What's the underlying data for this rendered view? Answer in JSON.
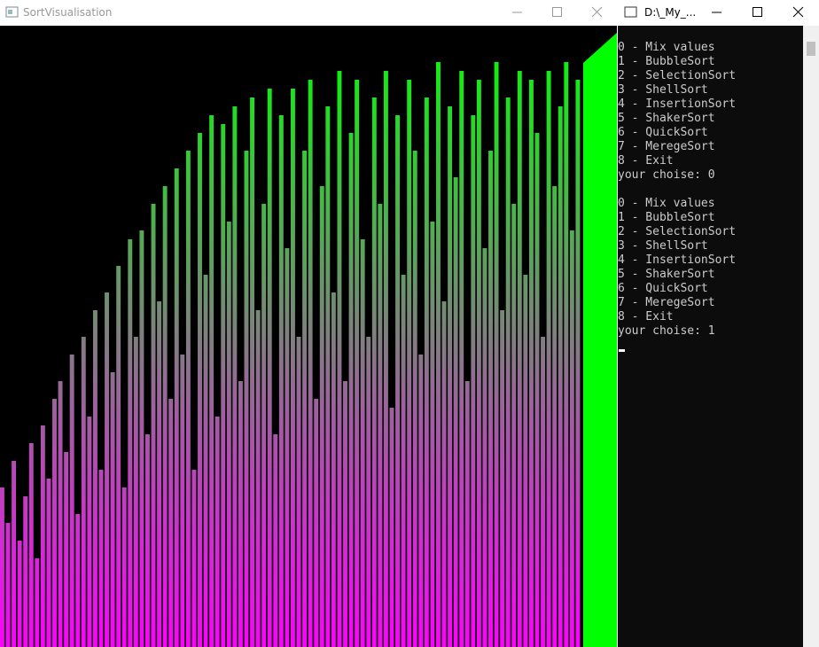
{
  "sort_window": {
    "title": "SortVisualisation",
    "bars": [
      180,
      140,
      210,
      120,
      170,
      230,
      100,
      250,
      190,
      280,
      300,
      220,
      330,
      150,
      350,
      260,
      380,
      200,
      400,
      310,
      430,
      180,
      460,
      350,
      470,
      240,
      500,
      390,
      520,
      280,
      540,
      330,
      560,
      200,
      580,
      420,
      600,
      260,
      590,
      480,
      610,
      300,
      560,
      620,
      380,
      500,
      630,
      240,
      600,
      450,
      630,
      350,
      560,
      640,
      280,
      520,
      610,
      400,
      650,
      300,
      580,
      640,
      460,
      350,
      620,
      500,
      650,
      270,
      600,
      420,
      640,
      560,
      330,
      620,
      480,
      660,
      390,
      610,
      530,
      650,
      300,
      600,
      640,
      450,
      560,
      660,
      380,
      620,
      500,
      650,
      420,
      640,
      580,
      350,
      650,
      520,
      610,
      660,
      470,
      640
    ]
  },
  "console_window": {
    "title": "D:\\_My_...",
    "blocks": [
      {
        "lines": [
          "0 - Mix values",
          "1 - BubbleSort",
          "2 - SelectionSort",
          "3 - ShellSort",
          "4 - InsertionSort",
          "5 - ShakerSort",
          "6 - QuickSort",
          "7 - MeregeSort",
          "8 - Exit",
          "your choise: 0"
        ]
      },
      {
        "lines": [
          "0 - Mix values",
          "1 - BubbleSort",
          "2 - SelectionSort",
          "3 - ShellSort",
          "4 - InsertionSort",
          "5 - ShakerSort",
          "6 - QuickSort",
          "7 - MeregeSort",
          "8 - Exit",
          "your choise: 1"
        ]
      }
    ]
  }
}
